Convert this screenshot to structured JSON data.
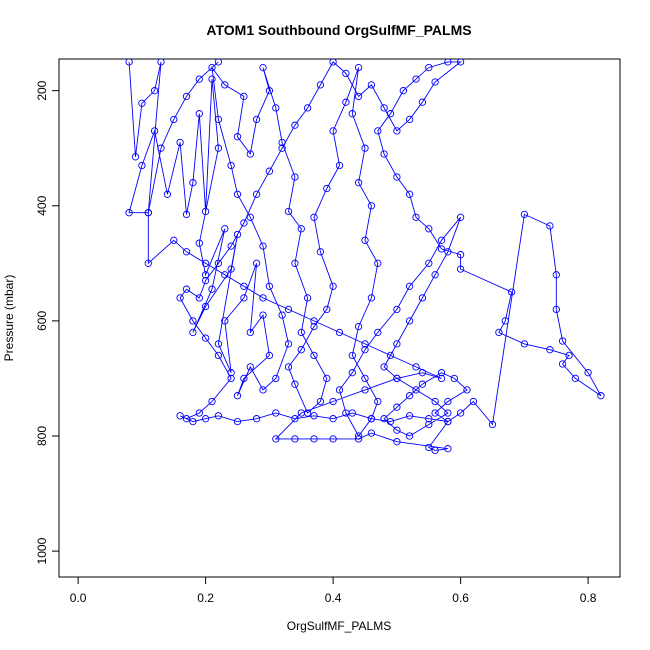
{
  "chart_data": {
    "type": "line",
    "title": "ATOM1 Southbound OrgSulfMF_PALMS",
    "xlabel": "OrgSulfMF_PALMS",
    "ylabel": "Pressure (mbar)",
    "xlim": [
      -0.03,
      0.85
    ],
    "ylim": [
      1045,
      145
    ],
    "y_axis_inverted": true,
    "x_ticks": [
      0.0,
      0.2,
      0.4,
      0.6,
      0.8
    ],
    "x_tick_labels": [
      "0.0",
      "0.2",
      "0.4",
      "0.6",
      "0.8"
    ],
    "y_ticks": [
      200,
      400,
      600,
      800,
      1000
    ],
    "y_tick_labels": [
      "200",
      "400",
      "600",
      "800",
      "1000"
    ],
    "grid": false,
    "marker": "open-circle",
    "series": [
      {
        "color": "#0000ff",
        "points": [
          [
            0.08,
            150
          ],
          [
            0.09,
            315
          ],
          [
            0.1,
            222
          ],
          [
            0.12,
            200
          ],
          [
            0.13,
            150
          ],
          [
            0.11,
            412
          ],
          [
            0.08,
            412
          ],
          [
            0.1,
            330
          ],
          [
            0.12,
            270
          ],
          [
            0.14,
            380
          ],
          [
            0.16,
            290
          ],
          [
            0.17,
            415
          ],
          [
            0.18,
            360
          ],
          [
            0.19,
            240
          ],
          [
            0.2,
            410
          ],
          [
            0.21,
            180
          ],
          [
            0.22,
            300
          ],
          [
            0.19,
            465
          ],
          [
            0.2,
            520
          ],
          [
            0.23,
            440
          ],
          [
            0.21,
            545
          ],
          [
            0.18,
            620
          ],
          [
            0.2,
            575
          ],
          [
            0.24,
            510
          ],
          [
            0.25,
            450
          ],
          [
            0.22,
            640
          ],
          [
            0.24,
            690
          ],
          [
            0.23,
            600
          ],
          [
            0.26,
            560
          ],
          [
            0.28,
            500
          ],
          [
            0.27,
            620
          ],
          [
            0.29,
            590
          ],
          [
            0.3,
            660
          ],
          [
            0.26,
            700
          ],
          [
            0.25,
            730
          ],
          [
            0.27,
            680
          ],
          [
            0.29,
            720
          ],
          [
            0.31,
            700
          ],
          [
            0.33,
            640
          ],
          [
            0.32,
            590
          ],
          [
            0.3,
            540
          ],
          [
            0.29,
            470
          ],
          [
            0.27,
            420
          ],
          [
            0.25,
            380
          ],
          [
            0.24,
            330
          ],
          [
            0.22,
            250
          ],
          [
            0.21,
            160
          ],
          [
            0.23,
            190
          ],
          [
            0.26,
            210
          ],
          [
            0.25,
            280
          ],
          [
            0.27,
            310
          ],
          [
            0.28,
            250
          ],
          [
            0.3,
            200
          ],
          [
            0.29,
            160
          ],
          [
            0.31,
            230
          ],
          [
            0.32,
            290
          ],
          [
            0.34,
            350
          ],
          [
            0.33,
            410
          ],
          [
            0.35,
            440
          ],
          [
            0.34,
            500
          ],
          [
            0.36,
            560
          ],
          [
            0.35,
            620
          ],
          [
            0.37,
            660
          ],
          [
            0.39,
            700
          ],
          [
            0.38,
            740
          ],
          [
            0.36,
            760
          ],
          [
            0.34,
            710
          ],
          [
            0.33,
            680
          ],
          [
            0.35,
            650
          ],
          [
            0.37,
            610
          ],
          [
            0.39,
            580
          ],
          [
            0.4,
            540
          ],
          [
            0.38,
            480
          ],
          [
            0.37,
            420
          ],
          [
            0.39,
            370
          ],
          [
            0.41,
            330
          ],
          [
            0.4,
            270
          ],
          [
            0.42,
            220
          ],
          [
            0.44,
            160
          ],
          [
            0.43,
            240
          ],
          [
            0.45,
            300
          ],
          [
            0.44,
            360
          ],
          [
            0.46,
            400
          ],
          [
            0.45,
            460
          ],
          [
            0.47,
            500
          ],
          [
            0.46,
            560
          ],
          [
            0.44,
            610
          ],
          [
            0.43,
            660
          ],
          [
            0.45,
            700
          ],
          [
            0.47,
            740
          ],
          [
            0.46,
            770
          ],
          [
            0.44,
            800
          ],
          [
            0.42,
            760
          ],
          [
            0.41,
            720
          ],
          [
            0.43,
            690
          ],
          [
            0.45,
            650
          ],
          [
            0.47,
            620
          ],
          [
            0.5,
            580
          ],
          [
            0.52,
            540
          ],
          [
            0.55,
            500
          ],
          [
            0.57,
            460
          ],
          [
            0.6,
            420
          ],
          [
            0.58,
            480
          ],
          [
            0.56,
            520
          ],
          [
            0.54,
            560
          ],
          [
            0.52,
            600
          ],
          [
            0.5,
            640
          ],
          [
            0.48,
            680
          ],
          [
            0.5,
            700
          ],
          [
            0.53,
            720
          ],
          [
            0.56,
            740
          ],
          [
            0.58,
            760
          ],
          [
            0.55,
            780
          ],
          [
            0.52,
            800
          ],
          [
            0.5,
            790
          ],
          [
            0.48,
            770
          ],
          [
            0.5,
            750
          ],
          [
            0.52,
            730
          ],
          [
            0.54,
            710
          ],
          [
            0.57,
            690
          ],
          [
            0.59,
            700
          ],
          [
            0.61,
            720
          ],
          [
            0.58,
            740
          ],
          [
            0.56,
            760
          ],
          [
            0.58,
            775
          ],
          [
            0.6,
            760
          ],
          [
            0.62,
            740
          ],
          [
            0.65,
            780
          ],
          [
            0.7,
            415
          ],
          [
            0.74,
            435
          ],
          [
            0.75,
            520
          ],
          [
            0.75,
            580
          ],
          [
            0.76,
            635
          ],
          [
            0.8,
            690
          ],
          [
            0.82,
            730
          ],
          [
            0.78,
            700
          ],
          [
            0.76,
            675
          ],
          [
            0.77,
            660
          ],
          [
            0.74,
            650
          ],
          [
            0.7,
            640
          ],
          [
            0.66,
            620
          ],
          [
            0.67,
            600
          ],
          [
            0.68,
            550
          ],
          [
            0.6,
            510
          ],
          [
            0.6,
            485
          ],
          [
            0.57,
            475
          ],
          [
            0.55,
            440
          ],
          [
            0.53,
            420
          ],
          [
            0.52,
            380
          ],
          [
            0.5,
            350
          ],
          [
            0.48,
            310
          ],
          [
            0.47,
            270
          ],
          [
            0.49,
            240
          ],
          [
            0.51,
            200
          ],
          [
            0.53,
            180
          ],
          [
            0.55,
            160
          ],
          [
            0.58,
            150
          ],
          [
            0.6,
            150
          ],
          [
            0.56,
            185
          ],
          [
            0.54,
            220
          ],
          [
            0.52,
            250
          ],
          [
            0.5,
            270
          ],
          [
            0.48,
            230
          ],
          [
            0.46,
            190
          ],
          [
            0.44,
            210
          ],
          [
            0.42,
            170
          ],
          [
            0.4,
            150
          ],
          [
            0.38,
            190
          ],
          [
            0.36,
            230
          ],
          [
            0.34,
            260
          ],
          [
            0.32,
            300
          ],
          [
            0.3,
            340
          ],
          [
            0.28,
            380
          ],
          [
            0.26,
            430
          ],
          [
            0.24,
            470
          ],
          [
            0.22,
            500
          ],
          [
            0.2,
            530
          ],
          [
            0.19,
            560
          ],
          [
            0.17,
            545
          ],
          [
            0.16,
            560
          ],
          [
            0.18,
            600
          ],
          [
            0.2,
            630
          ],
          [
            0.22,
            660
          ],
          [
            0.24,
            700
          ],
          [
            0.21,
            740
          ],
          [
            0.19,
            760
          ],
          [
            0.17,
            770
          ],
          [
            0.16,
            765
          ],
          [
            0.18,
            775
          ],
          [
            0.2,
            770
          ],
          [
            0.22,
            765
          ],
          [
            0.25,
            775
          ],
          [
            0.28,
            770
          ],
          [
            0.31,
            760
          ],
          [
            0.34,
            770
          ],
          [
            0.37,
            765
          ],
          [
            0.4,
            770
          ],
          [
            0.43,
            760
          ],
          [
            0.46,
            770
          ],
          [
            0.49,
            775
          ],
          [
            0.52,
            765
          ],
          [
            0.55,
            770
          ],
          [
            0.58,
            775
          ],
          [
            0.55,
            820
          ],
          [
            0.56,
            825
          ],
          [
            0.58,
            822
          ],
          [
            0.5,
            810
          ],
          [
            0.46,
            795
          ],
          [
            0.44,
            805
          ],
          [
            0.4,
            805
          ],
          [
            0.37,
            805
          ],
          [
            0.34,
            805
          ],
          [
            0.31,
            805
          ],
          [
            0.35,
            760
          ],
          [
            0.4,
            740
          ],
          [
            0.45,
            720
          ],
          [
            0.5,
            700
          ],
          [
            0.54,
            690
          ],
          [
            0.57,
            700
          ],
          [
            0.53,
            680
          ],
          [
            0.49,
            660
          ],
          [
            0.45,
            640
          ],
          [
            0.41,
            620
          ],
          [
            0.37,
            600
          ],
          [
            0.33,
            580
          ],
          [
            0.29,
            560
          ],
          [
            0.26,
            540
          ],
          [
            0.23,
            520
          ],
          [
            0.2,
            500
          ],
          [
            0.17,
            480
          ],
          [
            0.15,
            460
          ],
          [
            0.11,
            500
          ],
          [
            0.11,
            412
          ],
          [
            0.13,
            300
          ],
          [
            0.15,
            250
          ],
          [
            0.17,
            210
          ],
          [
            0.19,
            180
          ],
          [
            0.22,
            150
          ]
        ]
      }
    ]
  }
}
